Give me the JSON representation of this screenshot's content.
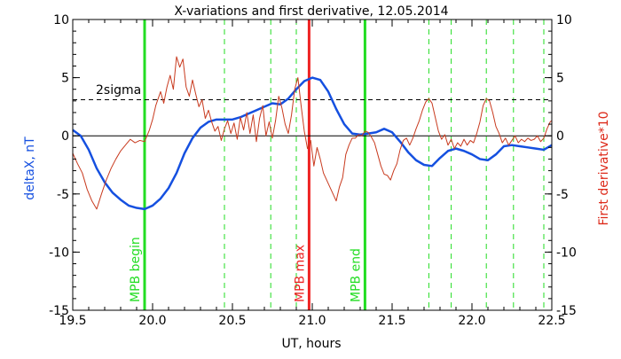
{
  "chart_data": {
    "type": "line",
    "title": "X-variations and first derivative, 12.05.2014",
    "xlabel": "UT, hours",
    "ylabel_left": "deltaX, nT",
    "ylabel_right": "First derivative*10",
    "xlim": [
      19.5,
      22.5
    ],
    "ylim_left": [
      -15,
      10
    ],
    "ylim_right": [
      -15,
      10
    ],
    "x_ticks": [
      "19.5",
      "20.0",
      "20.5",
      "21.0",
      "21.5",
      "22.0",
      "22.5"
    ],
    "y_ticks_left": [
      "10",
      "5",
      "0",
      "-5",
      "-10",
      "-15"
    ],
    "y_ticks_right": [
      "10",
      "5",
      "0",
      "-5",
      "-10",
      "-15"
    ],
    "colors": {
      "deltaX": "#1550e0",
      "derivative": "#c83a1e",
      "mpb": "#22dd22",
      "mpb_max": "#ee2222",
      "sigma": "#000000",
      "ylabel_left": "#1550e0",
      "ylabel_right": "#dd2a1a"
    },
    "sigma_line": {
      "label": "2sigma",
      "y": 3.1
    },
    "zero_line": 0,
    "mpb_lines": [
      {
        "label": "MPB begin",
        "x": 19.95,
        "color": "#22dd22"
      },
      {
        "label": "MPB max",
        "x": 20.98,
        "color": "#ee2222"
      },
      {
        "label": "MPB end",
        "x": 21.33,
        "color": "#22dd22"
      }
    ],
    "dashed_lines_x": [
      20.45,
      20.74,
      20.9,
      21.73,
      21.87,
      22.09,
      22.26,
      22.45
    ],
    "series": [
      {
        "key": "deltaX",
        "axis": "left",
        "points": [
          [
            19.5,
            0.5
          ],
          [
            19.55,
            0.0
          ],
          [
            19.6,
            -1.2
          ],
          [
            19.65,
            -2.8
          ],
          [
            19.7,
            -4.0
          ],
          [
            19.75,
            -4.9
          ],
          [
            19.8,
            -5.5
          ],
          [
            19.85,
            -6.0
          ],
          [
            19.9,
            -6.2
          ],
          [
            19.95,
            -6.3
          ],
          [
            20.0,
            -6.0
          ],
          [
            20.05,
            -5.4
          ],
          [
            20.1,
            -4.5
          ],
          [
            20.15,
            -3.2
          ],
          [
            20.2,
            -1.5
          ],
          [
            20.25,
            -0.2
          ],
          [
            20.3,
            0.7
          ],
          [
            20.35,
            1.2
          ],
          [
            20.4,
            1.4
          ],
          [
            20.45,
            1.4
          ],
          [
            20.5,
            1.4
          ],
          [
            20.55,
            1.6
          ],
          [
            20.6,
            1.9
          ],
          [
            20.65,
            2.2
          ],
          [
            20.7,
            2.5
          ],
          [
            20.75,
            2.8
          ],
          [
            20.8,
            2.7
          ],
          [
            20.85,
            3.2
          ],
          [
            20.9,
            4.0
          ],
          [
            20.95,
            4.7
          ],
          [
            21.0,
            5.0
          ],
          [
            21.05,
            4.8
          ],
          [
            21.1,
            3.8
          ],
          [
            21.15,
            2.3
          ],
          [
            21.2,
            1.0
          ],
          [
            21.25,
            0.2
          ],
          [
            21.3,
            0.1
          ],
          [
            21.35,
            0.2
          ],
          [
            21.4,
            0.3
          ],
          [
            21.45,
            0.6
          ],
          [
            21.5,
            0.3
          ],
          [
            21.55,
            -0.5
          ],
          [
            21.6,
            -1.4
          ],
          [
            21.65,
            -2.1
          ],
          [
            21.7,
            -2.5
          ],
          [
            21.75,
            -2.6
          ],
          [
            21.8,
            -1.9
          ],
          [
            21.85,
            -1.3
          ],
          [
            21.9,
            -1.1
          ],
          [
            21.95,
            -1.3
          ],
          [
            22.0,
            -1.6
          ],
          [
            22.05,
            -2.0
          ],
          [
            22.1,
            -2.1
          ],
          [
            22.15,
            -1.6
          ],
          [
            22.2,
            -0.9
          ],
          [
            22.25,
            -0.8
          ],
          [
            22.3,
            -0.9
          ],
          [
            22.35,
            -1.0
          ],
          [
            22.4,
            -1.1
          ],
          [
            22.45,
            -1.2
          ],
          [
            22.5,
            -0.8
          ]
        ]
      },
      {
        "key": "derivative",
        "axis": "right",
        "points": [
          [
            19.5,
            -1.5
          ],
          [
            19.53,
            -2.4
          ],
          [
            19.56,
            -3.2
          ],
          [
            19.59,
            -4.6
          ],
          [
            19.62,
            -5.6
          ],
          [
            19.65,
            -6.3
          ],
          [
            19.68,
            -5.0
          ],
          [
            19.71,
            -3.8
          ],
          [
            19.74,
            -2.8
          ],
          [
            19.77,
            -2.0
          ],
          [
            19.8,
            -1.3
          ],
          [
            19.83,
            -0.8
          ],
          [
            19.86,
            -0.3
          ],
          [
            19.89,
            -0.6
          ],
          [
            19.92,
            -0.4
          ],
          [
            19.95,
            -0.5
          ],
          [
            19.98,
            0.5
          ],
          [
            20.0,
            1.4
          ],
          [
            20.02,
            2.6
          ],
          [
            20.05,
            3.8
          ],
          [
            20.07,
            2.8
          ],
          [
            20.09,
            4.2
          ],
          [
            20.11,
            5.2
          ],
          [
            20.13,
            4.0
          ],
          [
            20.15,
            6.8
          ],
          [
            20.17,
            5.9
          ],
          [
            20.19,
            6.6
          ],
          [
            20.21,
            4.2
          ],
          [
            20.23,
            3.4
          ],
          [
            20.25,
            4.8
          ],
          [
            20.27,
            3.6
          ],
          [
            20.29,
            2.5
          ],
          [
            20.31,
            3.1
          ],
          [
            20.33,
            1.5
          ],
          [
            20.35,
            2.2
          ],
          [
            20.37,
            1.2
          ],
          [
            20.39,
            0.4
          ],
          [
            20.41,
            0.8
          ],
          [
            20.43,
            -0.4
          ],
          [
            20.45,
            0.6
          ],
          [
            20.47,
            1.3
          ],
          [
            20.49,
            0.2
          ],
          [
            20.51,
            1.1
          ],
          [
            20.53,
            -0.3
          ],
          [
            20.55,
            1.6
          ],
          [
            20.57,
            0.5
          ],
          [
            20.59,
            2.0
          ],
          [
            20.61,
            0.2
          ],
          [
            20.63,
            1.8
          ],
          [
            20.65,
            -0.5
          ],
          [
            20.67,
            1.5
          ],
          [
            20.69,
            2.6
          ],
          [
            20.71,
            0.0
          ],
          [
            20.73,
            1.2
          ],
          [
            20.75,
            -0.2
          ],
          [
            20.77,
            1.3
          ],
          [
            20.79,
            3.4
          ],
          [
            20.81,
            2.4
          ],
          [
            20.83,
            1.0
          ],
          [
            20.85,
            0.2
          ],
          [
            20.87,
            1.8
          ],
          [
            20.89,
            4.0
          ],
          [
            20.91,
            5.0
          ],
          [
            20.93,
            2.6
          ],
          [
            20.95,
            0.4
          ],
          [
            20.97,
            -1.1
          ],
          [
            20.99,
            -0.4
          ],
          [
            21.01,
            -2.6
          ],
          [
            21.03,
            -1.0
          ],
          [
            21.05,
            -2.0
          ],
          [
            21.07,
            -3.2
          ],
          [
            21.09,
            -3.8
          ],
          [
            21.11,
            -4.4
          ],
          [
            21.13,
            -5.0
          ],
          [
            21.15,
            -5.6
          ],
          [
            21.17,
            -4.4
          ],
          [
            21.19,
            -3.6
          ],
          [
            21.21,
            -1.6
          ],
          [
            21.23,
            -0.8
          ],
          [
            21.25,
            -0.2
          ],
          [
            21.27,
            -0.2
          ],
          [
            21.29,
            0.1
          ],
          [
            21.31,
            0.0
          ],
          [
            21.33,
            0.4
          ],
          [
            21.35,
            0.3
          ],
          [
            21.37,
            -0.1
          ],
          [
            21.39,
            -0.6
          ],
          [
            21.41,
            -1.6
          ],
          [
            21.43,
            -2.6
          ],
          [
            21.45,
            -3.3
          ],
          [
            21.47,
            -3.4
          ],
          [
            21.49,
            -3.8
          ],
          [
            21.51,
            -3.0
          ],
          [
            21.53,
            -2.4
          ],
          [
            21.55,
            -1.2
          ],
          [
            21.57,
            -0.4
          ],
          [
            21.59,
            -0.2
          ],
          [
            21.61,
            -0.8
          ],
          [
            21.63,
            -0.2
          ],
          [
            21.65,
            0.6
          ],
          [
            21.67,
            1.3
          ],
          [
            21.69,
            2.2
          ],
          [
            21.71,
            2.9
          ],
          [
            21.73,
            3.2
          ],
          [
            21.75,
            2.8
          ],
          [
            21.77,
            1.6
          ],
          [
            21.79,
            0.4
          ],
          [
            21.81,
            -0.3
          ],
          [
            21.83,
            0.1
          ],
          [
            21.85,
            -0.8
          ],
          [
            21.87,
            -0.3
          ],
          [
            21.89,
            -1.1
          ],
          [
            21.91,
            -0.6
          ],
          [
            21.93,
            -0.9
          ],
          [
            21.95,
            -0.3
          ],
          [
            21.97,
            -0.8
          ],
          [
            21.99,
            -0.4
          ],
          [
            22.01,
            -0.6
          ],
          [
            22.03,
            0.2
          ],
          [
            22.05,
            1.2
          ],
          [
            22.07,
            2.6
          ],
          [
            22.09,
            3.2
          ],
          [
            22.11,
            3.0
          ],
          [
            22.13,
            2.0
          ],
          [
            22.15,
            0.8
          ],
          [
            22.17,
            0.2
          ],
          [
            22.19,
            -0.6
          ],
          [
            22.21,
            -0.2
          ],
          [
            22.23,
            -0.8
          ],
          [
            22.25,
            -0.4
          ],
          [
            22.27,
            0.0
          ],
          [
            22.29,
            -0.6
          ],
          [
            22.31,
            -0.3
          ],
          [
            22.33,
            -0.5
          ],
          [
            22.35,
            -0.2
          ],
          [
            22.37,
            -0.4
          ],
          [
            22.39,
            -0.3
          ],
          [
            22.41,
            0.0
          ],
          [
            22.43,
            -0.5
          ],
          [
            22.45,
            -0.2
          ],
          [
            22.47,
            0.6
          ],
          [
            22.49,
            1.2
          ],
          [
            22.5,
            1.3
          ]
        ]
      }
    ]
  }
}
